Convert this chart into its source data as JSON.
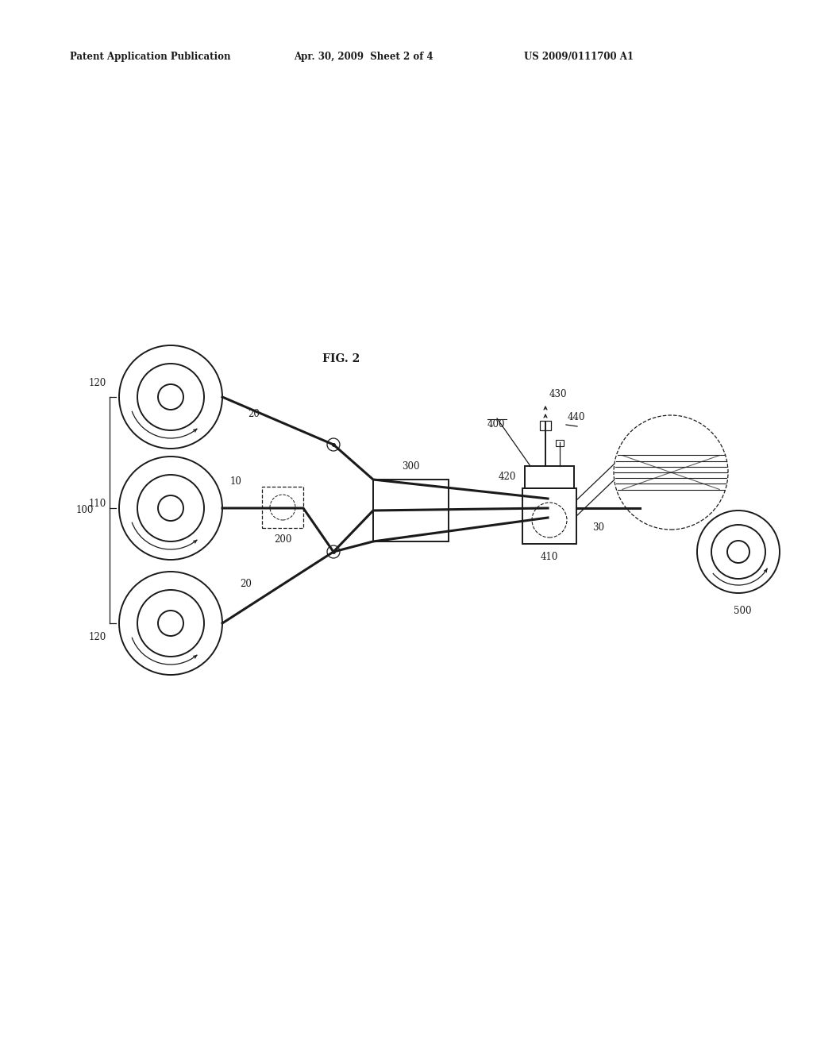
{
  "title_left": "Patent Application Publication",
  "title_mid": "Apr. 30, 2009  Sheet 2 of 4",
  "title_right": "US 2009/0111700 A1",
  "fig_label": "FIG. 2",
  "bg_color": "#ffffff",
  "line_color": "#1a1a1a"
}
